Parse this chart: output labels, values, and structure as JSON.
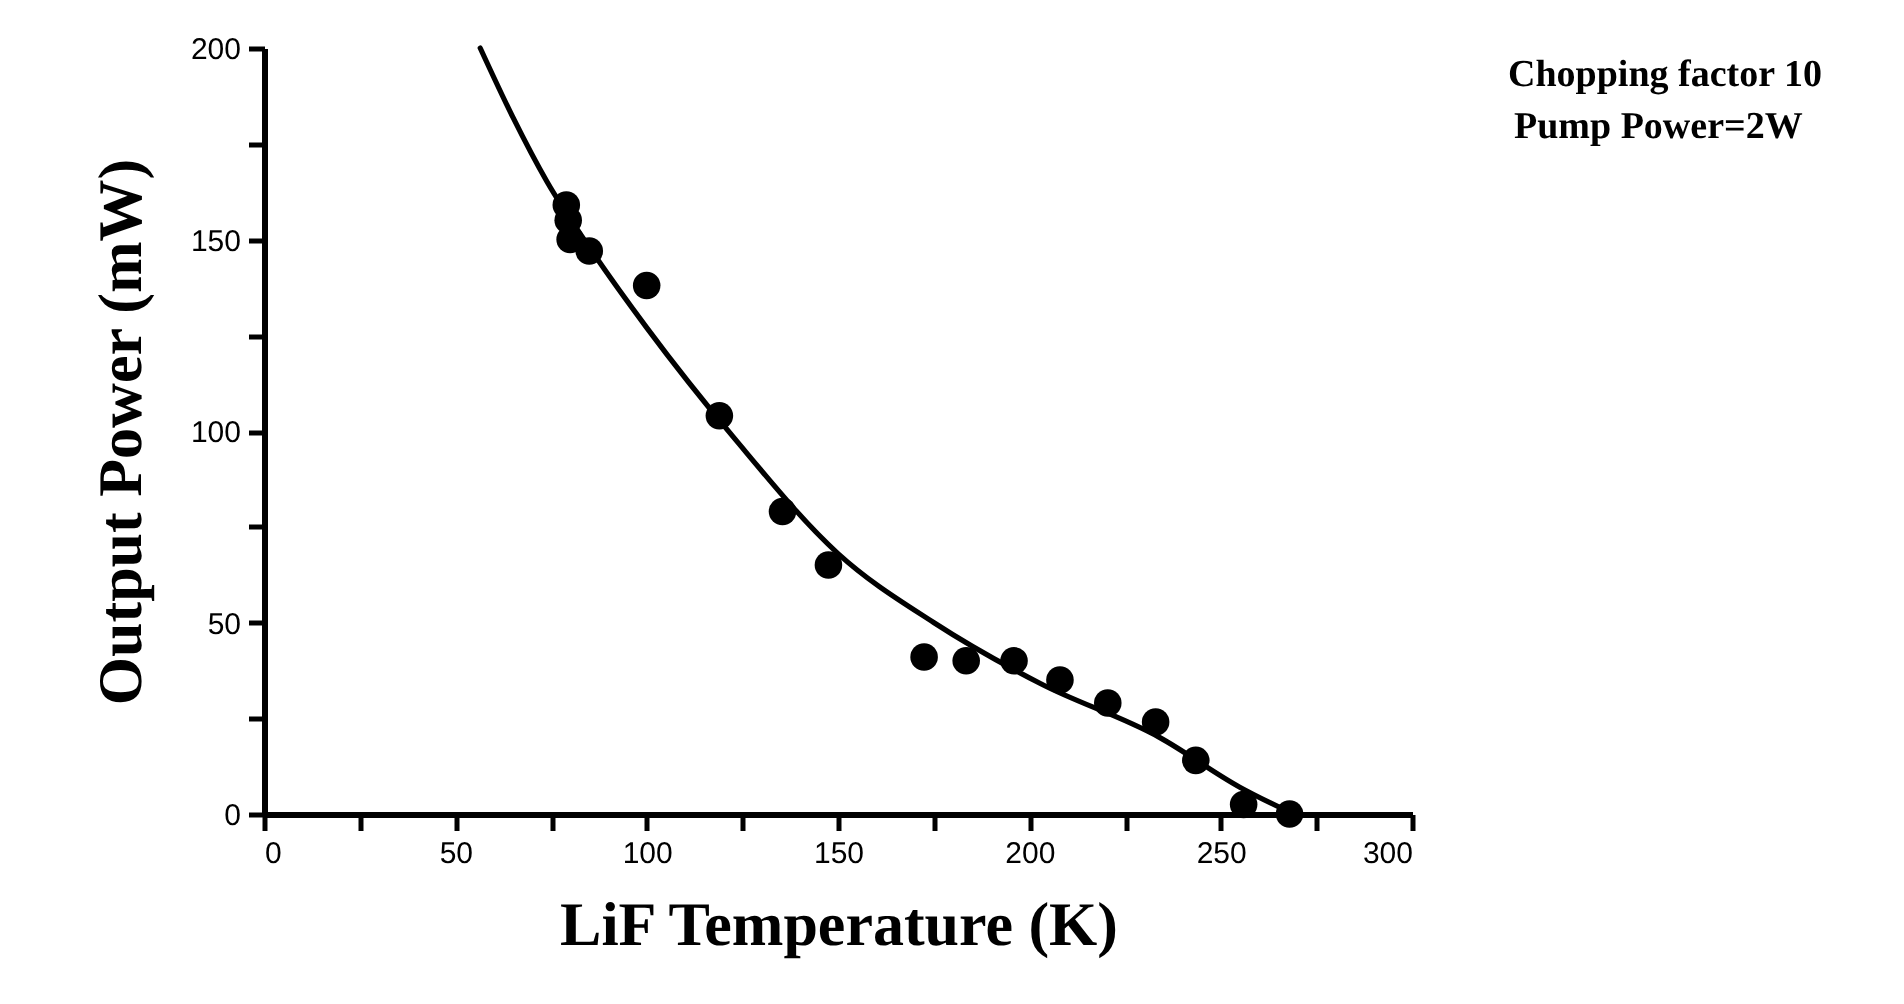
{
  "chart_data": {
    "type": "scatter",
    "xlabel": "LiF Temperature (K)",
    "ylabel": "Output Power (mW)",
    "annotations": [
      "Chopping factor 10",
      "Pump  Power=2W"
    ],
    "xlim": [
      0,
      300
    ],
    "ylim": [
      0,
      200
    ],
    "xticks": [
      0,
      {
        "value": 25,
        "label": null
      },
      50,
      {
        "value": 75,
        "label": null
      },
      100,
      {
        "value": 125,
        "label": null
      },
      150,
      {
        "value": 175,
        "label": null
      },
      200,
      {
        "value": 225,
        "label": null
      },
      250,
      {
        "value": 275,
        "label": null
      },
      300
    ],
    "yticks": [
      0,
      {
        "value": 25,
        "label": null
      },
      50,
      {
        "value": 75,
        "label": null
      },
      100,
      {
        "value": 125,
        "label": null
      },
      150,
      {
        "value": 175,
        "label": null
      },
      200
    ],
    "grid": false,
    "legend": false,
    "marker": "circle",
    "series": [
      {
        "color": "#000000",
        "x": [
          79,
          79.5,
          80,
          85,
          100,
          119,
          135.5,
          147.5,
          172.5,
          183.5,
          196,
          208,
          220.5,
          233,
          243.5,
          256,
          268
        ],
        "values": [
          159,
          155,
          150,
          147,
          138,
          104,
          79,
          65,
          41,
          40,
          40,
          35,
          29,
          24,
          14,
          2.5,
          0
        ]
      },
      {
        "type": "line",
        "color": "#000000",
        "line_style": "solid",
        "marker": "none",
        "x": [
          56.5,
          65,
          74,
          85,
          100,
          123,
          150,
          175,
          203,
          234,
          255,
          269
        ],
        "values": [
          200,
          182,
          165,
          148,
          127,
          98,
          68,
          50,
          34,
          20,
          7,
          0
        ]
      }
    ]
  }
}
